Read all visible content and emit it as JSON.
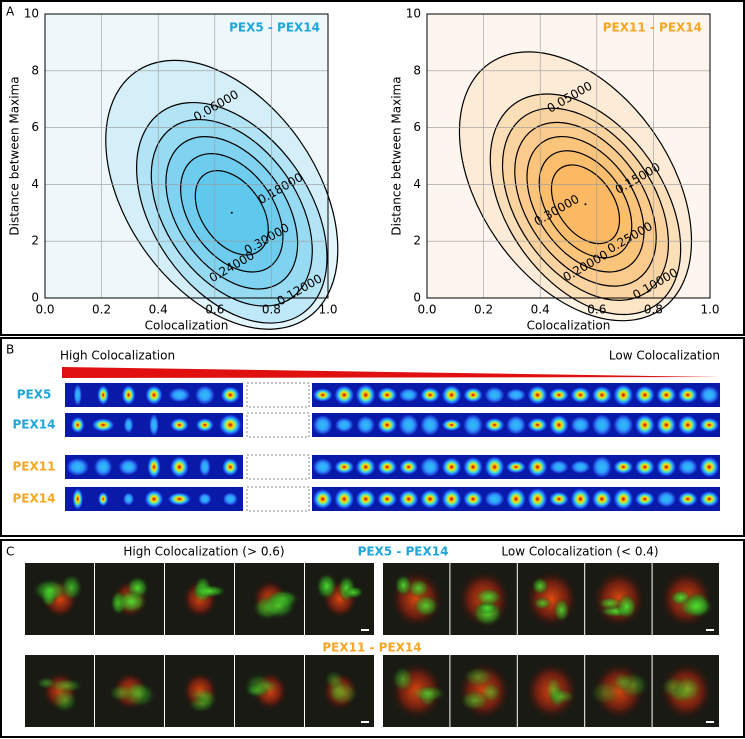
{
  "panel_labels": [
    "A",
    "B",
    "C"
  ],
  "chart_data": [
    {
      "type": "contour",
      "title": "PEX5 - PEX14",
      "title_color": "#1fa6d8",
      "color": "#19b4ea",
      "background": "#eef8fb",
      "x_label": "Colocalization",
      "y_label": "Distance between Maxima",
      "xlim": [
        0,
        1
      ],
      "ylim": [
        0,
        10
      ],
      "xticks": [
        {
          "value": 0,
          "label": "0.0"
        },
        {
          "value": 0.2,
          "label": "0.2"
        },
        {
          "value": 0.4,
          "label": "0.4"
        },
        {
          "value": 0.6,
          "label": "0.6"
        },
        {
          "value": 0.8,
          "label": "0.8"
        },
        {
          "value": 1,
          "label": "1.0"
        }
      ],
      "yticks": [
        0,
        2,
        4,
        6,
        8,
        10
      ],
      "grid": true,
      "center": {
        "x": 0.66,
        "y": 3.0
      },
      "levels": [
        {
          "value": 0.06,
          "label": "0.06000"
        },
        {
          "value": 0.12,
          "label": "0.12000"
        },
        {
          "value": 0.18,
          "label": "0.18000"
        },
        {
          "value": 0.24,
          "label": "0.24000"
        },
        {
          "value": 0.3,
          "label": "0.30000"
        }
      ]
    },
    {
      "type": "contour",
      "title": "PEX11 - PEX14",
      "title_color": "#f5a623",
      "color": "#f7a431",
      "background": "#fdf6ee",
      "x_label": "Colocalization",
      "y_label": "Distance between Maxima",
      "xlim": [
        0,
        1
      ],
      "ylim": [
        0,
        10
      ],
      "xticks": [
        {
          "value": 0,
          "label": "0.0"
        },
        {
          "value": 0.2,
          "label": "0.2"
        },
        {
          "value": 0.4,
          "label": "0.4"
        },
        {
          "value": 0.6,
          "label": "0.6"
        },
        {
          "value": 0.8,
          "label": "0.8"
        },
        {
          "value": 1,
          "label": "1.0"
        }
      ],
      "yticks": [
        0,
        2,
        4,
        6,
        8,
        10
      ],
      "grid": true,
      "center": {
        "x": 0.56,
        "y": 3.3
      },
      "levels": [
        {
          "value": 0.05,
          "label": "0.05000"
        },
        {
          "value": 0.1,
          "label": "0.10000"
        },
        {
          "value": 0.15,
          "label": "0.15000"
        },
        {
          "value": 0.2,
          "label": "0.20000"
        },
        {
          "value": 0.25,
          "label": "0.25000"
        },
        {
          "value": 0.3,
          "label": "0.30000"
        }
      ]
    }
  ],
  "panel_b": {
    "high": "High Colocalization",
    "low": "Low Colocalization",
    "rows": [
      {
        "label": "PEX5",
        "color": "#1fa6d8"
      },
      {
        "label": "PEX14",
        "color": "#1fa6d8"
      },
      {
        "label": "PEX11",
        "color": "#f5a623"
      },
      {
        "label": "PEX14",
        "color": "#f5a623"
      }
    ]
  },
  "panel_c": {
    "high": "High Colocalization (> 0.6)",
    "low": "Low Colocalization (< 0.4)",
    "pair1": {
      "label": "PEX5 - PEX14",
      "color": "#1fa6d8"
    },
    "pair2": {
      "label": "PEX11 - PEX14",
      "color": "#f5a623"
    }
  }
}
